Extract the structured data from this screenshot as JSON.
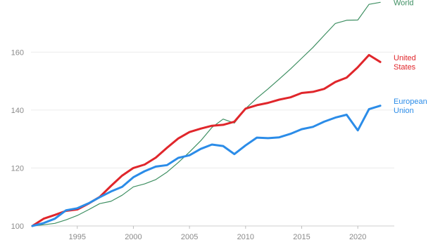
{
  "chart_data": {
    "type": "line",
    "ylim": [
      100,
      178
    ],
    "xlim": [
      1991,
      2023
    ],
    "y_ticks": [
      100,
      120,
      140,
      160
    ],
    "x_ticks": [
      1995,
      2000,
      2005,
      2010,
      2015,
      2020
    ],
    "grid": "horizontal",
    "x": [
      1991,
      1992,
      1993,
      1994,
      1995,
      1996,
      1997,
      1998,
      1999,
      2000,
      2001,
      2002,
      2003,
      2004,
      2005,
      2006,
      2007,
      2008,
      2009,
      2010,
      2011,
      2012,
      2013,
      2014,
      2015,
      2016,
      2017,
      2018,
      2019,
      2020,
      2021,
      2022
    ],
    "series": [
      {
        "name": "World",
        "label_lines": [
          "World"
        ],
        "color": "#3e8f62",
        "stroke": "thin",
        "values": [
          100.0,
          100.4,
          100.9,
          102.1,
          103.6,
          105.6,
          107.7,
          108.5,
          110.6,
          113.5,
          114.5,
          116.0,
          118.6,
          121.9,
          125.5,
          129.4,
          134.0,
          136.9,
          135.5,
          140.5,
          144.1,
          147.3,
          150.7,
          154.2,
          157.9,
          161.6,
          165.8,
          169.9,
          171.0,
          171.1,
          176.5,
          177.2
        ]
      },
      {
        "name": "United States",
        "label_lines": [
          "United",
          "States"
        ],
        "color": "#e0262b",
        "stroke": "thick",
        "values": [
          100.0,
          102.5,
          103.8,
          105.2,
          105.7,
          107.7,
          110.0,
          113.8,
          117.4,
          120.0,
          121.2,
          123.6,
          127.0,
          130.2,
          132.4,
          133.6,
          134.6,
          134.9,
          136.0,
          140.5,
          141.7,
          142.5,
          143.6,
          144.4,
          145.9,
          146.3,
          147.3,
          149.7,
          151.2,
          154.8,
          159.0,
          156.6
        ]
      },
      {
        "name": "European Union",
        "label_lines": [
          "European",
          "Union"
        ],
        "color": "#2b8ce8",
        "stroke": "thick",
        "values": [
          100.0,
          101.0,
          102.5,
          105.4,
          106.1,
          107.8,
          109.9,
          111.9,
          113.5,
          116.8,
          118.9,
          120.5,
          121.0,
          123.5,
          124.4,
          126.6,
          128.1,
          127.6,
          124.8,
          127.8,
          130.5,
          130.3,
          130.6,
          131.8,
          133.4,
          134.2,
          136.0,
          137.4,
          138.4,
          133.0,
          140.3,
          141.5
        ]
      }
    ]
  }
}
